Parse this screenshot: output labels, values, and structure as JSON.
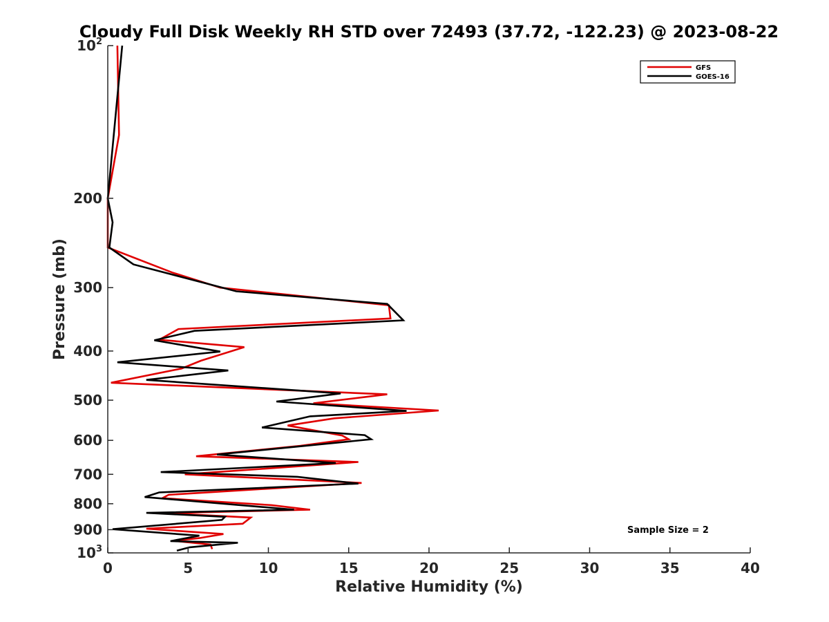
{
  "chart_data": {
    "type": "line",
    "title": "Cloudy Full Disk Weekly RH STD over 72493 (37.72, -122.23) @ 2023-08-22",
    "xlabel": "Relative Humidity (%)",
    "ylabel": "Pressure (mb)",
    "xlim": [
      0,
      40
    ],
    "ylim": [
      100,
      1000
    ],
    "yscale": "log",
    "y_reversed": true,
    "x_ticks": [
      "0",
      "5",
      "10",
      "15",
      "20",
      "25",
      "30",
      "35",
      "40"
    ],
    "y_ticks": [
      {
        "value": 100,
        "base": "10",
        "exp": "2"
      },
      {
        "value": 200,
        "label": "200"
      },
      {
        "value": 300,
        "label": "300"
      },
      {
        "value": 400,
        "label": "400"
      },
      {
        "value": 500,
        "label": "500"
      },
      {
        "value": 600,
        "label": "600"
      },
      {
        "value": 700,
        "label": "700"
      },
      {
        "value": 800,
        "label": "800"
      },
      {
        "value": 900,
        "label": "900"
      },
      {
        "value": 1000,
        "base": "10",
        "exp": "3"
      }
    ],
    "legend_position": "top-right",
    "annotation": "Sample Size = 2",
    "series": [
      {
        "name": "GFS",
        "color": "#e00000",
        "points": [
          [
            0.6,
            100
          ],
          [
            0.7,
            150
          ],
          [
            0.0,
            200
          ],
          [
            0.0,
            250
          ],
          [
            4.0,
            280
          ],
          [
            7.0,
            300
          ],
          [
            17.5,
            325
          ],
          [
            17.6,
            345
          ],
          [
            4.4,
            362
          ],
          [
            3.2,
            380
          ],
          [
            8.5,
            393
          ],
          [
            5.8,
            418
          ],
          [
            4.6,
            433
          ],
          [
            0.2,
            462
          ],
          [
            17.4,
            487
          ],
          [
            12.8,
            507
          ],
          [
            20.6,
            524
          ],
          [
            14.1,
            543
          ],
          [
            11.2,
            561
          ],
          [
            14.6,
            587
          ],
          [
            15.0,
            597
          ],
          [
            12.0,
            615
          ],
          [
            5.5,
            645
          ],
          [
            15.6,
            662
          ],
          [
            4.8,
            700
          ],
          [
            15.8,
            728
          ],
          [
            3.8,
            768
          ],
          [
            3.4,
            780
          ],
          [
            10.2,
            805
          ],
          [
            12.6,
            822
          ],
          [
            3.6,
            835
          ],
          [
            8.9,
            852
          ],
          [
            8.4,
            876
          ],
          [
            2.4,
            896
          ],
          [
            7.2,
            918
          ],
          [
            5.7,
            935
          ],
          [
            4.1,
            947
          ],
          [
            6.4,
            963
          ],
          [
            6.5,
            983
          ]
        ]
      },
      {
        "name": "GOES-16",
        "color": "#000000",
        "points": [
          [
            0.9,
            100
          ],
          [
            0.0,
            200
          ],
          [
            0.3,
            223
          ],
          [
            0.1,
            250
          ],
          [
            1.6,
            270
          ],
          [
            8.0,
            305
          ],
          [
            17.4,
            323
          ],
          [
            18.4,
            348
          ],
          [
            5.4,
            365
          ],
          [
            2.9,
            381
          ],
          [
            7.0,
            401
          ],
          [
            0.6,
            421
          ],
          [
            7.5,
            437
          ],
          [
            2.4,
            456
          ],
          [
            14.5,
            485
          ],
          [
            10.5,
            503
          ],
          [
            18.6,
            525
          ],
          [
            12.6,
            538
          ],
          [
            9.6,
            566
          ],
          [
            16.0,
            586
          ],
          [
            16.4,
            597
          ],
          [
            6.8,
            640
          ],
          [
            14.2,
            665
          ],
          [
            3.3,
            693
          ],
          [
            11.8,
            708
          ],
          [
            15.6,
            730
          ],
          [
            3.2,
            760
          ],
          [
            2.3,
            776
          ],
          [
            11.6,
            822
          ],
          [
            2.4,
            834
          ],
          [
            7.3,
            849
          ],
          [
            7.1,
            861
          ],
          [
            0.3,
            898
          ],
          [
            5.7,
            925
          ],
          [
            3.9,
            948
          ],
          [
            8.1,
            955
          ],
          [
            5.1,
            975
          ],
          [
            4.3,
            990
          ]
        ]
      }
    ]
  }
}
